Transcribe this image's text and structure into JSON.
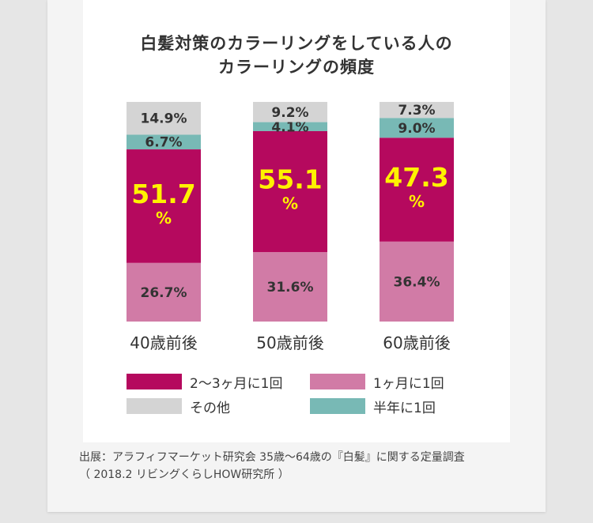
{
  "title": {
    "line1": "白髪対策のカラーリングをしている人の",
    "line2": "カラーリングの頻度"
  },
  "colors": {
    "2_3_months": "#b5095e",
    "1_month": "#d17ba6",
    "other": "#d4d4d4",
    "half_year": "#78b9b5",
    "highlight_text": "#fff200"
  },
  "chart_data": {
    "type": "bar",
    "stacked": true,
    "title": "白髪対策のカラーリングをしている人のカラーリングの頻度",
    "categories": [
      "40歳前後",
      "50歳前後",
      "60歳前後"
    ],
    "ylim": [
      0,
      100
    ],
    "unit": "%",
    "series": [
      {
        "name": "1ヶ月に1回",
        "values": [
          26.7,
          31.6,
          36.4
        ],
        "labels": [
          "26.7%",
          "31.6%",
          "36.4%"
        ]
      },
      {
        "name": "2〜3ヶ月に1回",
        "values": [
          51.7,
          55.1,
          47.3
        ],
        "labels": [
          "51.7",
          "55.1",
          "47.3"
        ]
      },
      {
        "name": "半年に1回",
        "values": [
          6.7,
          4.1,
          9.0
        ],
        "labels": [
          "6.7%",
          "4.1%",
          "9.0%"
        ]
      },
      {
        "name": "その他",
        "values": [
          14.9,
          9.2,
          7.3
        ],
        "labels": [
          "14.9%",
          "9.2%",
          "7.3%"
        ]
      }
    ],
    "highlight_unit": "%"
  },
  "legend": [
    {
      "label": "2〜3ヶ月に1回",
      "color": "#b5095e"
    },
    {
      "label": "1ヶ月に1回",
      "color": "#d17ba6"
    },
    {
      "label": "その他",
      "color": "#d4d4d4"
    },
    {
      "label": "半年に1回",
      "color": "#78b9b5"
    }
  ],
  "source": {
    "line1": "出展：アラフィフマーケット研究会  35歳〜64歳の『白髪』に関する定量調査",
    "line2": "（  2018.2  リビングくらしHOW研究所 ）"
  }
}
